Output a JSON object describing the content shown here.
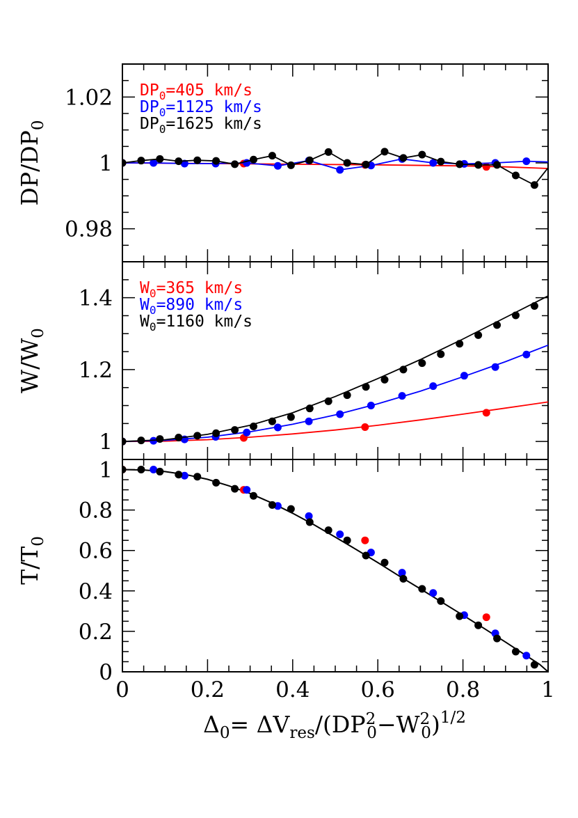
{
  "chart_data": [
    {
      "type": "line",
      "ylabel_main": "DP/DP",
      "ylabel_sub": "0",
      "xlim": [
        0,
        1
      ],
      "ylim": [
        0.97,
        1.03
      ],
      "yticks": [
        "0.98",
        "1",
        "1.02"
      ],
      "legend_position": "top-left",
      "series": [
        {
          "name": "DP₀=405 km/s",
          "label_main": "DP",
          "label_sub": "0",
          "label_value": "=405 km/s",
          "color": "#ff0000",
          "line_x": [
            0,
            0.2,
            0.4,
            0.6,
            0.8,
            0.9,
            1.0
          ],
          "line_y": [
            1.0,
            0.9998,
            0.9996,
            0.9994,
            0.9991,
            0.9988,
            0.9983
          ],
          "points_x": [
            0.0,
            0.285,
            0.57,
            0.855
          ],
          "points_y": [
            1.0,
            0.9998,
            0.9994,
            0.9988
          ]
        },
        {
          "name": "DP₀=1125 km/s",
          "label_main": "DP",
          "label_sub": "0",
          "label_value": "=1125 km/s",
          "color": "#0000ff",
          "points_x": [
            0.0,
            0.073,
            0.146,
            0.219,
            0.292,
            0.365,
            0.438,
            0.511,
            0.584,
            0.657,
            0.73,
            0.803,
            0.876,
            0.949,
            1.0
          ],
          "points_y": [
            1.0,
            1.0,
            0.9998,
            0.9998,
            1.0,
            0.9991,
            1.0007,
            0.9979,
            0.9992,
            1.0012,
            1.0,
            0.9997,
            1.0,
            1.0005,
            1.0003
          ]
        },
        {
          "name": "DP₀=1625 km/s",
          "label_main": "DP",
          "label_sub": "0",
          "label_value": "=1625 km/s",
          "color": "#000000",
          "points_x": [
            0.0,
            0.044,
            0.088,
            0.132,
            0.176,
            0.22,
            0.264,
            0.308,
            0.352,
            0.396,
            0.44,
            0.484,
            0.528,
            0.572,
            0.616,
            0.66,
            0.704,
            0.748,
            0.792,
            0.836,
            0.88,
            0.924,
            0.968,
            1.0
          ],
          "points_y": [
            1.0,
            1.0007,
            1.0012,
            1.0005,
            1.0008,
            1.0006,
            0.9996,
            1.001,
            1.0022,
            0.9993,
            1.0008,
            1.0033,
            1.0,
            0.9995,
            1.0034,
            1.0015,
            1.0025,
            1.0004,
            0.9996,
            0.9994,
            0.9994,
            0.9962,
            0.9933,
            0.9985
          ]
        }
      ]
    },
    {
      "type": "line",
      "ylabel_main": "W/W",
      "ylabel_sub": "0",
      "xlim": [
        0,
        1
      ],
      "ylim": [
        0.95,
        1.5
      ],
      "yticks": [
        "1",
        "1.2",
        "1.4"
      ],
      "legend_position": "top-left",
      "series": [
        {
          "name": "W₀=365 km/s",
          "label_main": "W",
          "label_sub": "0",
          "label_value": "=365 km/s",
          "color": "#ff0000",
          "line_x": [
            0,
            0.1,
            0.2,
            0.3,
            0.4,
            0.5,
            0.6,
            0.7,
            0.8,
            0.9,
            1.0
          ],
          "line_y": [
            1.0,
            1.001,
            1.005,
            1.012,
            1.021,
            1.032,
            1.045,
            1.06,
            1.076,
            1.093,
            1.11
          ],
          "points_x": [
            0.0,
            0.285,
            0.57,
            0.855
          ],
          "points_y": [
            1.0,
            1.01,
            1.04,
            1.08
          ]
        },
        {
          "name": "W₀=890 km/s",
          "label_main": "W",
          "label_sub": "0",
          "label_value": "=890 km/s",
          "color": "#0000ff",
          "line_x": [
            0,
            0.1,
            0.2,
            0.3,
            0.4,
            0.5,
            0.6,
            0.7,
            0.8,
            0.9,
            1.0
          ],
          "line_y": [
            1.0,
            1.003,
            1.012,
            1.027,
            1.048,
            1.074,
            1.105,
            1.14,
            1.18,
            1.222,
            1.268
          ],
          "points_x": [
            0.0,
            0.073,
            0.146,
            0.219,
            0.292,
            0.365,
            0.438,
            0.511,
            0.584,
            0.657,
            0.73,
            0.803,
            0.876,
            0.949
          ],
          "points_y": [
            1.0,
            1.002,
            1.006,
            1.013,
            1.025,
            1.039,
            1.056,
            1.076,
            1.1,
            1.127,
            1.154,
            1.183,
            1.207,
            1.242
          ]
        },
        {
          "name": "W₀=1160 km/s",
          "label_main": "W",
          "label_sub": "0",
          "label_value": "=1160 km/s",
          "color": "#000000",
          "line_x": [
            0,
            0.1,
            0.2,
            0.3,
            0.4,
            0.5,
            0.6,
            0.7,
            0.8,
            0.9,
            1.0
          ],
          "line_y": [
            1.0,
            1.005,
            1.02,
            1.045,
            1.08,
            1.125,
            1.175,
            1.228,
            1.285,
            1.345,
            1.405
          ],
          "points_x": [
            0.0,
            0.044,
            0.088,
            0.132,
            0.176,
            0.22,
            0.264,
            0.308,
            0.352,
            0.396,
            0.44,
            0.484,
            0.528,
            0.572,
            0.616,
            0.66,
            0.704,
            0.748,
            0.792,
            0.836,
            0.88,
            0.924,
            0.968
          ],
          "points_y": [
            1.0,
            1.003,
            1.007,
            1.011,
            1.016,
            1.023,
            1.032,
            1.042,
            1.056,
            1.068,
            1.092,
            1.112,
            1.129,
            1.152,
            1.172,
            1.2,
            1.218,
            1.243,
            1.272,
            1.296,
            1.324,
            1.351,
            1.377
          ]
        }
      ]
    },
    {
      "type": "scatter",
      "ylabel_main": "T/T",
      "ylabel_sub": "0",
      "xlabel": "Δ₀= ΔV_res/(DP₀²−W₀²)^1/2",
      "xlim": [
        0,
        1
      ],
      "ylim": [
        0,
        1.05
      ],
      "xticks": [
        "0",
        "0.2",
        "0.4",
        "0.6",
        "0.8",
        "1"
      ],
      "yticks": [
        "0",
        "0.2",
        "0.4",
        "0.6",
        "0.8",
        "1"
      ],
      "model_curve": {
        "color": "#000000",
        "x": [
          0,
          0.05,
          0.1,
          0.15,
          0.2,
          0.25,
          0.3,
          0.35,
          0.4,
          0.45,
          0.5,
          0.55,
          0.6,
          0.65,
          0.7,
          0.75,
          0.8,
          0.85,
          0.9,
          0.95,
          0.98,
          1.0
        ],
        "y": [
          1.0,
          0.998,
          0.99,
          0.975,
          0.952,
          0.92,
          0.882,
          0.836,
          0.784,
          0.727,
          0.666,
          0.604,
          0.54,
          0.474,
          0.41,
          0.345,
          0.28,
          0.214,
          0.147,
          0.078,
          0.037,
          0.0
        ]
      },
      "series": [
        {
          "name": "405",
          "color": "#ff0000",
          "x": [
            0.0,
            0.285,
            0.57,
            0.855
          ],
          "y": [
            1.0,
            0.9,
            0.65,
            0.27
          ]
        },
        {
          "name": "1125",
          "color": "#0000ff",
          "x": [
            0.073,
            0.146,
            0.292,
            0.365,
            0.438,
            0.511,
            0.584,
            0.657,
            0.73,
            0.803,
            0.876,
            0.949
          ],
          "y": [
            1.0,
            0.97,
            0.9,
            0.82,
            0.77,
            0.68,
            0.59,
            0.49,
            0.39,
            0.28,
            0.19,
            0.08
          ]
        },
        {
          "name": "1160",
          "color": "#000000",
          "x": [
            0.0,
            0.044,
            0.088,
            0.132,
            0.176,
            0.22,
            0.264,
            0.308,
            0.352,
            0.396,
            0.44,
            0.484,
            0.528,
            0.572,
            0.616,
            0.66,
            0.704,
            0.748,
            0.792,
            0.836,
            0.88,
            0.924,
            0.968
          ],
          "y": [
            1.0,
            1.0,
            0.99,
            0.975,
            0.965,
            0.935,
            0.905,
            0.87,
            0.825,
            0.805,
            0.74,
            0.7,
            0.65,
            0.575,
            0.54,
            0.46,
            0.41,
            0.35,
            0.275,
            0.23,
            0.165,
            0.1,
            0.035
          ]
        }
      ]
    }
  ],
  "xlabel_parts": {
    "delta": "Δ",
    "delta_sub": "0",
    "equals": "= ",
    "dv": "ΔV",
    "dv_sub": "res",
    "slash": "/(DP",
    "dp_sup": "2",
    "dp_sub": "0",
    "minus": "−W",
    "w_sup": "2",
    "w_sub": "0",
    "close": ")",
    "exp": "1/2"
  }
}
